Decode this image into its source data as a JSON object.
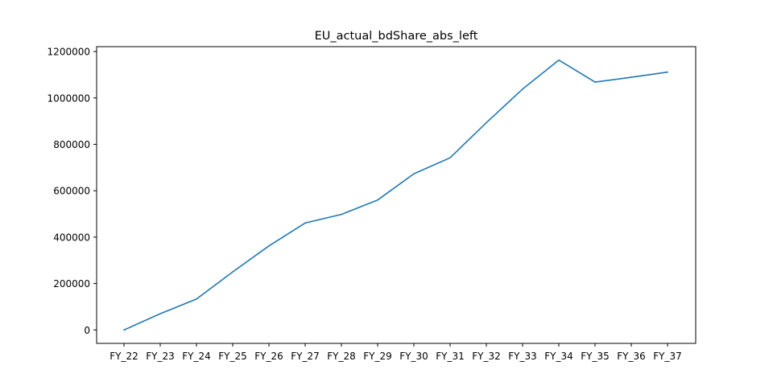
{
  "chart_data": {
    "type": "line",
    "title": "EU_actual_bdShare_abs_left",
    "xlabel": "",
    "ylabel": "",
    "categories": [
      "FY_22",
      "FY_23",
      "FY_24",
      "FY_25",
      "FY_26",
      "FY_27",
      "FY_28",
      "FY_29",
      "FY_30",
      "FY_31",
      "FY_32",
      "FY_33",
      "FY_34",
      "FY_35",
      "FY_36",
      "FY_37"
    ],
    "series": [
      {
        "color": "#1f77b4",
        "values": [
          0,
          70000,
          133000,
          250000,
          362000,
          461000,
          498000,
          560000,
          673000,
          742000,
          893000,
          1038000,
          1163000,
          1068000,
          1089000,
          1111000
        ]
      }
    ],
    "yticks": [
      0,
      200000,
      400000,
      600000,
      800000,
      1000000,
      1200000
    ],
    "ytick_labels": [
      "0",
      "200000",
      "400000",
      "600000",
      "800000",
      "1000000",
      "1200000"
    ],
    "ylim": [
      -58000,
      1221000
    ],
    "grid": false,
    "legend": "none"
  }
}
